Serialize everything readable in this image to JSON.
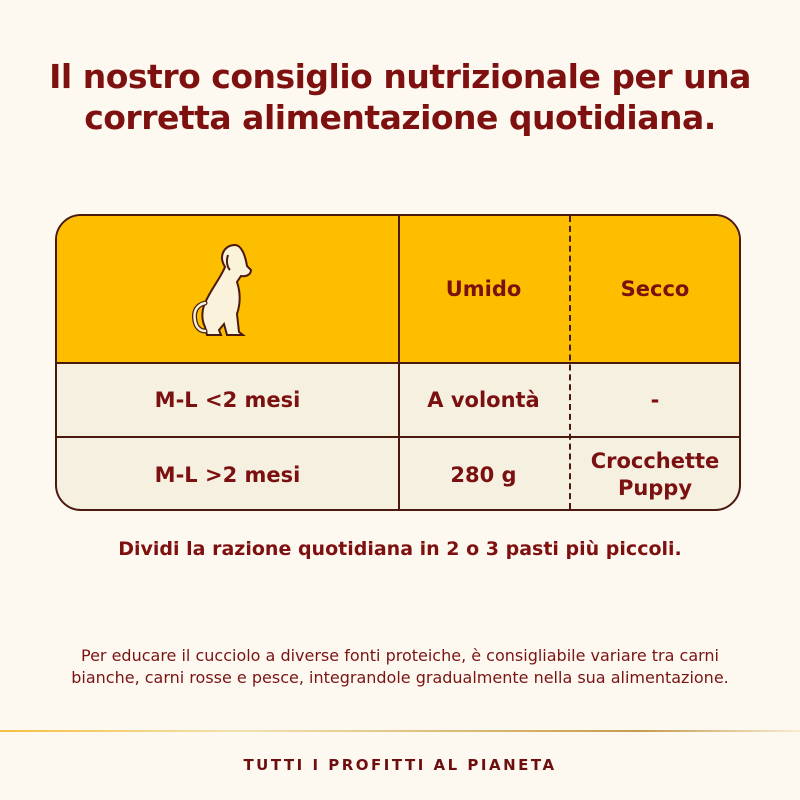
{
  "title": "Il nostro consiglio nutrizionale per una corretta alimentazione quotidiana.",
  "table": {
    "header_icon": "dog-sitting-icon",
    "columns": [
      "Umido",
      "Secco"
    ],
    "rows": [
      {
        "label": "M-L <2 mesi",
        "umido": "A volontà",
        "secco": "-"
      },
      {
        "label": "M-L >2 mesi",
        "umido": "280 g",
        "secco": "Crocchette Puppy"
      }
    ]
  },
  "hint": "Dividi la razione quotidiana in 2 o 3 pasti più piccoli.",
  "paragraph": "Per educare il cucciolo a diverse fonti proteiche, è consigliabile variare tra carni bianche, carni rosse e pesce, integrandole gradualmente nella sua alimentazione.",
  "footer": "TUTTI I PROFITTI AL PIANETA",
  "colors": {
    "accent": "#fdbe00",
    "text": "#7f1010",
    "background": "#fdf9f0"
  }
}
